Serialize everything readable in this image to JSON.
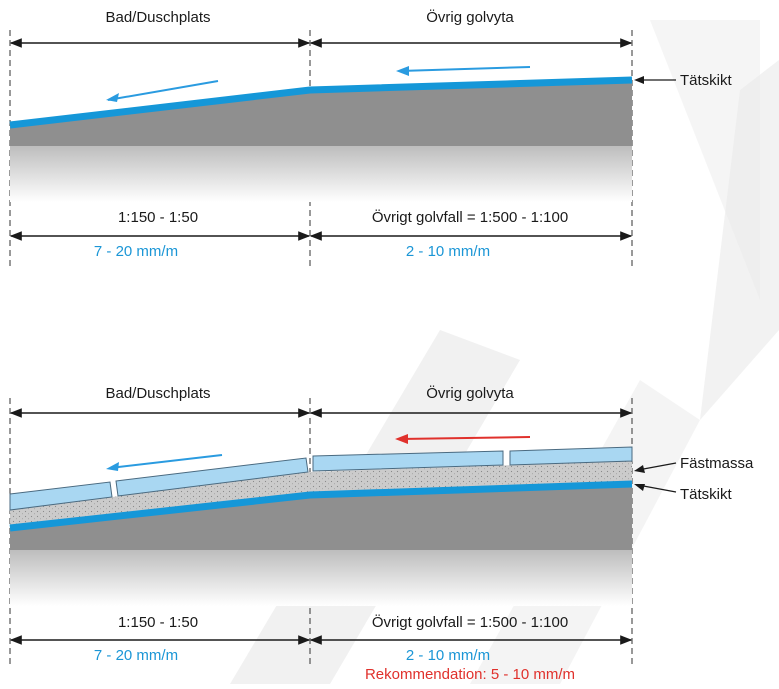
{
  "colors": {
    "membrane": "#1597d8",
    "arrow_blue": "#2a9be0",
    "arrow_red": "#e0312c",
    "tile": "#a9d7f2",
    "concrete": "#8f8f8f",
    "adhesive": "#c9c9c9",
    "watermark": "#e6e6e6"
  },
  "top": {
    "zone_left": "Bad/Duschplats",
    "zone_right": "Övrig golvyta",
    "layer_label": "Tätskikt",
    "ratio_left": "1:150 - 1:50",
    "ratio_right": "Övrigt golvfall = 1:500 - 1:100",
    "slope_left": "7 - 20 mm/m",
    "slope_right": "2 - 10 mm/m"
  },
  "bottom": {
    "zone_left": "Bad/Duschplats",
    "zone_right": "Övrig golvyta",
    "adhesive_label": "Fästmassa",
    "layer_label": "Tätskikt",
    "ratio_left": "1:150 - 1:50",
    "ratio_right": "Övrigt golvfall = 1:500 - 1:100",
    "slope_left": "7 - 20 mm/m",
    "slope_right": "2 - 10 mm/m",
    "recommendation": "Rekommendation: 5 - 10 mm/m"
  }
}
